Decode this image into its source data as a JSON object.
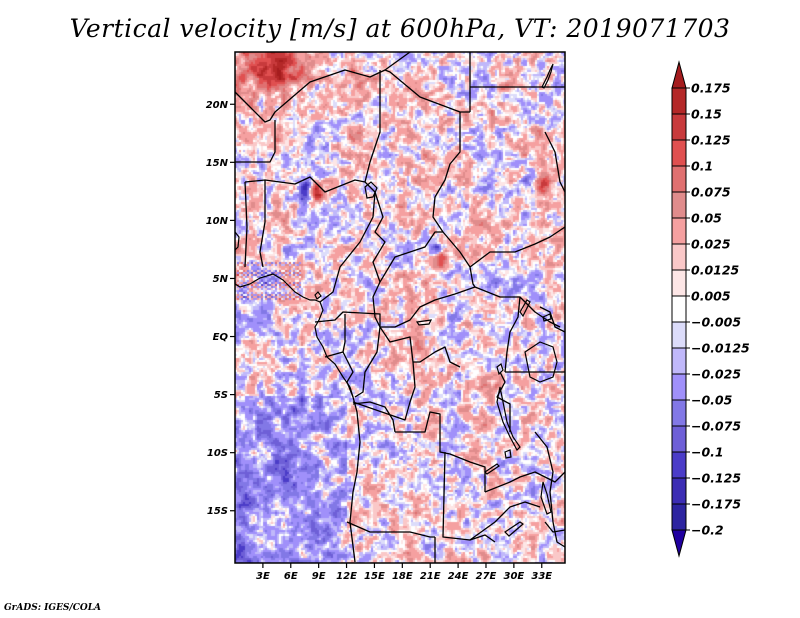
{
  "chart_data": {
    "type": "heatmap",
    "title": "Vertical velocity [m/s] at 600hPa, VT: 2019071703",
    "variable": "Vertical velocity",
    "units": "m/s",
    "level": "600hPa",
    "valid_time": "2019071703",
    "xlabel": "",
    "ylabel": "",
    "x_range_deg": [
      0,
      35.5
    ],
    "y_range_deg": [
      -19.5,
      24.5
    ],
    "x_ticks": [
      "3E",
      "6E",
      "9E",
      "12E",
      "15E",
      "18E",
      "21E",
      "24E",
      "27E",
      "30E",
      "33E"
    ],
    "x_tick_values": [
      3,
      6,
      9,
      12,
      15,
      18,
      21,
      24,
      27,
      30,
      33
    ],
    "y_ticks": [
      "20N",
      "15N",
      "10N",
      "5N",
      "EQ",
      "5S",
      "10S",
      "15S"
    ],
    "y_tick_values": [
      20,
      15,
      10,
      5,
      0,
      -5,
      -10,
      -15
    ],
    "colorbar": {
      "orientation": "vertical",
      "placement": "right",
      "extend": "both",
      "levels": [
        0.175,
        0.15,
        0.125,
        0.1,
        0.075,
        0.05,
        0.025,
        0.0125,
        0.005,
        -0.005,
        -0.0125,
        -0.025,
        -0.05,
        -0.075,
        -0.1,
        -0.125,
        -0.175,
        -0.2
      ],
      "labels": [
        "0.175",
        "0.15",
        "0.125",
        "0.1",
        "0.075",
        "0.05",
        "0.025",
        "0.0125",
        "0.005",
        "−0.005",
        "−0.0125",
        "−0.025",
        "−0.05",
        "−0.075",
        "−0.1",
        "−0.125",
        "−0.175",
        "−0.2"
      ],
      "colors_top_to_bottom": [
        "#a51c1e",
        "#b42828",
        "#c83a3c",
        "#e05050",
        "#e07070",
        "#e08c8c",
        "#f5a0a0",
        "#fac8c8",
        "#fde6e6",
        "#ffffff",
        "#dcdcfa",
        "#c0b8fa",
        "#a090fa",
        "#8278e6",
        "#6e5fd7",
        "#4b3cc8",
        "#3c2db4",
        "#2d24a0",
        "#2000a0"
      ]
    },
    "notable_features": [
      {
        "description": "strong updraft / downdraft couplet over northern Nigeria",
        "approx_lat": 12.5,
        "approx_lon": 8.5
      },
      {
        "description": "convective cell over Central African Republic / South Sudan border",
        "approx_lat": 7,
        "approx_lon": 22
      },
      {
        "description": "ascent band near Chad / Sudan border",
        "approx_lat": 13.5,
        "approx_lon": 33
      },
      {
        "description": "strong ascent over southern Algeria/Libya top-left",
        "approx_lat": 23.5,
        "approx_lon": 3
      },
      {
        "description": "broad weak descent over South Atlantic off Angola",
        "approx_lat": -14,
        "approx_lon": 4
      }
    ]
  },
  "footer": "GrADS: IGES/COLA"
}
